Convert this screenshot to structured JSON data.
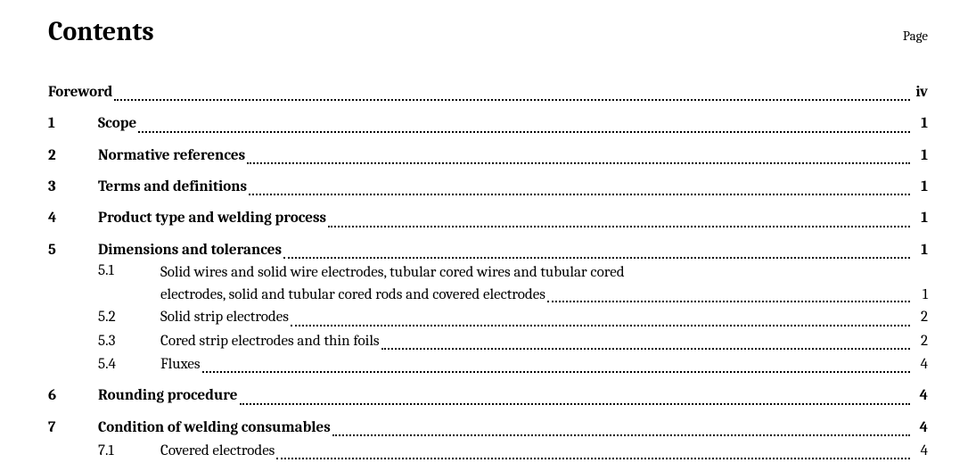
{
  "header": {
    "title": "Contents",
    "page_label": "Page"
  },
  "foreword": {
    "label": "Foreword",
    "page": "iv"
  },
  "sections": {
    "s1": {
      "num": "1",
      "title": "Scope",
      "page": "1"
    },
    "s2": {
      "num": "2",
      "title": "Normative references",
      "page": "1"
    },
    "s3": {
      "num": "3",
      "title": "Terms and definitions",
      "page": "1"
    },
    "s4": {
      "num": "4",
      "title": "Product type and welding process",
      "page": "1"
    },
    "s5": {
      "num": "5",
      "title": "Dimensions and tolerances",
      "page": "1",
      "subs": {
        "a": {
          "num": "5.1",
          "line1": "Solid wires and solid wire electrodes, tubular cored wires and tubular cored",
          "line2": "electrodes, solid and tubular cored rods and covered electrodes",
          "page": "1"
        },
        "b": {
          "num": "5.2",
          "title": "Solid strip electrodes",
          "page": "2"
        },
        "c": {
          "num": "5.3",
          "title": "Cored strip electrodes and thin foils",
          "page": "2"
        },
        "d": {
          "num": "5.4",
          "title": "Fluxes",
          "page": "4"
        }
      }
    },
    "s6": {
      "num": "6",
      "title": "Rounding procedure",
      "page": "4"
    },
    "s7": {
      "num": "7",
      "title": "Condition of welding consumables",
      "page": "4",
      "subs": {
        "a": {
          "num": "7.1",
          "title": "Covered electrodes",
          "page": "4"
        }
      }
    }
  }
}
